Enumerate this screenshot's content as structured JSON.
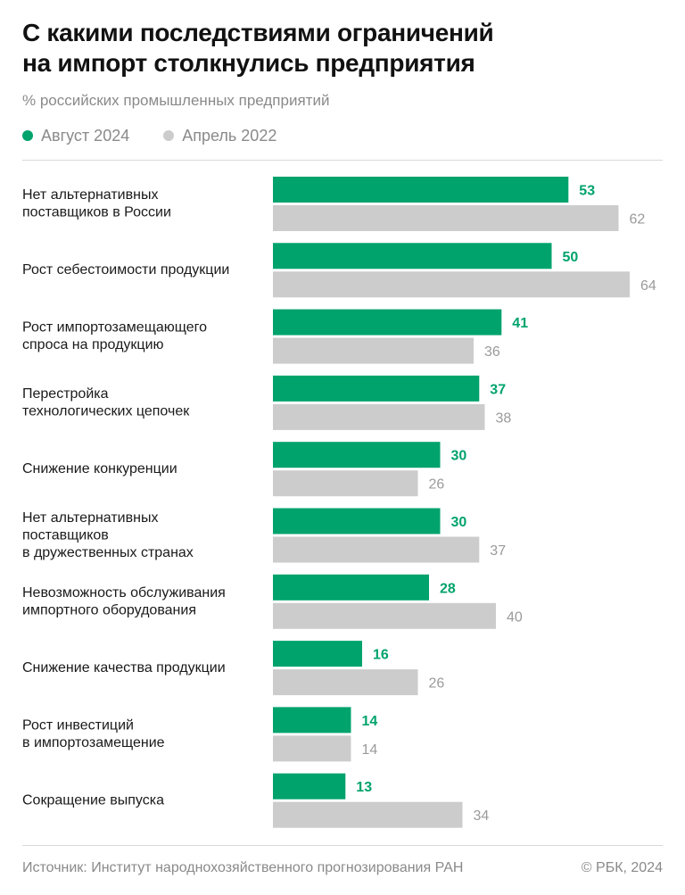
{
  "title_lines": [
    "С какими последствиями ограничений",
    "на импорт столкнулись предприятия"
  ],
  "subtitle": "% российских промышленных предприятий",
  "legend": [
    {
      "label": "Август 2024",
      "color": "#00a36c"
    },
    {
      "label": "Апрель 2022",
      "color": "#cccccc"
    }
  ],
  "footer": {
    "source": "Источник: Институт народнохозяйственного прогнозирования РАН",
    "copyright": "© РБК, 2024"
  },
  "chart_data": {
    "type": "bar",
    "orientation": "horizontal",
    "categories": [
      [
        "Нет альтернативных",
        "поставщиков в России"
      ],
      [
        "Рост себестоимости продукции"
      ],
      [
        "Рост импортозамещающего",
        "спроса на продукцию"
      ],
      [
        "Перестройка",
        "технологических цепочек"
      ],
      [
        "Снижение конкуренции"
      ],
      [
        "Нет альтернативных",
        "поставщиков",
        "в дружественных странах"
      ],
      [
        "Невозможность обслуживания",
        "импортного оборудования"
      ],
      [
        "Снижение качества продукции"
      ],
      [
        "Рост инвестиций",
        "в импортозамещение"
      ],
      [
        "Сокращение выпуска"
      ]
    ],
    "series": [
      {
        "name": "Август 2024",
        "color": "#00a36c",
        "values": [
          53,
          50,
          41,
          37,
          30,
          30,
          28,
          16,
          14,
          13
        ]
      },
      {
        "name": "Апрель 2022",
        "color": "#cccccc",
        "values": [
          62,
          64,
          36,
          38,
          26,
          37,
          40,
          26,
          14,
          34
        ]
      }
    ],
    "xlim": [
      0,
      64
    ],
    "grid": false,
    "legend_position": "top-left"
  }
}
